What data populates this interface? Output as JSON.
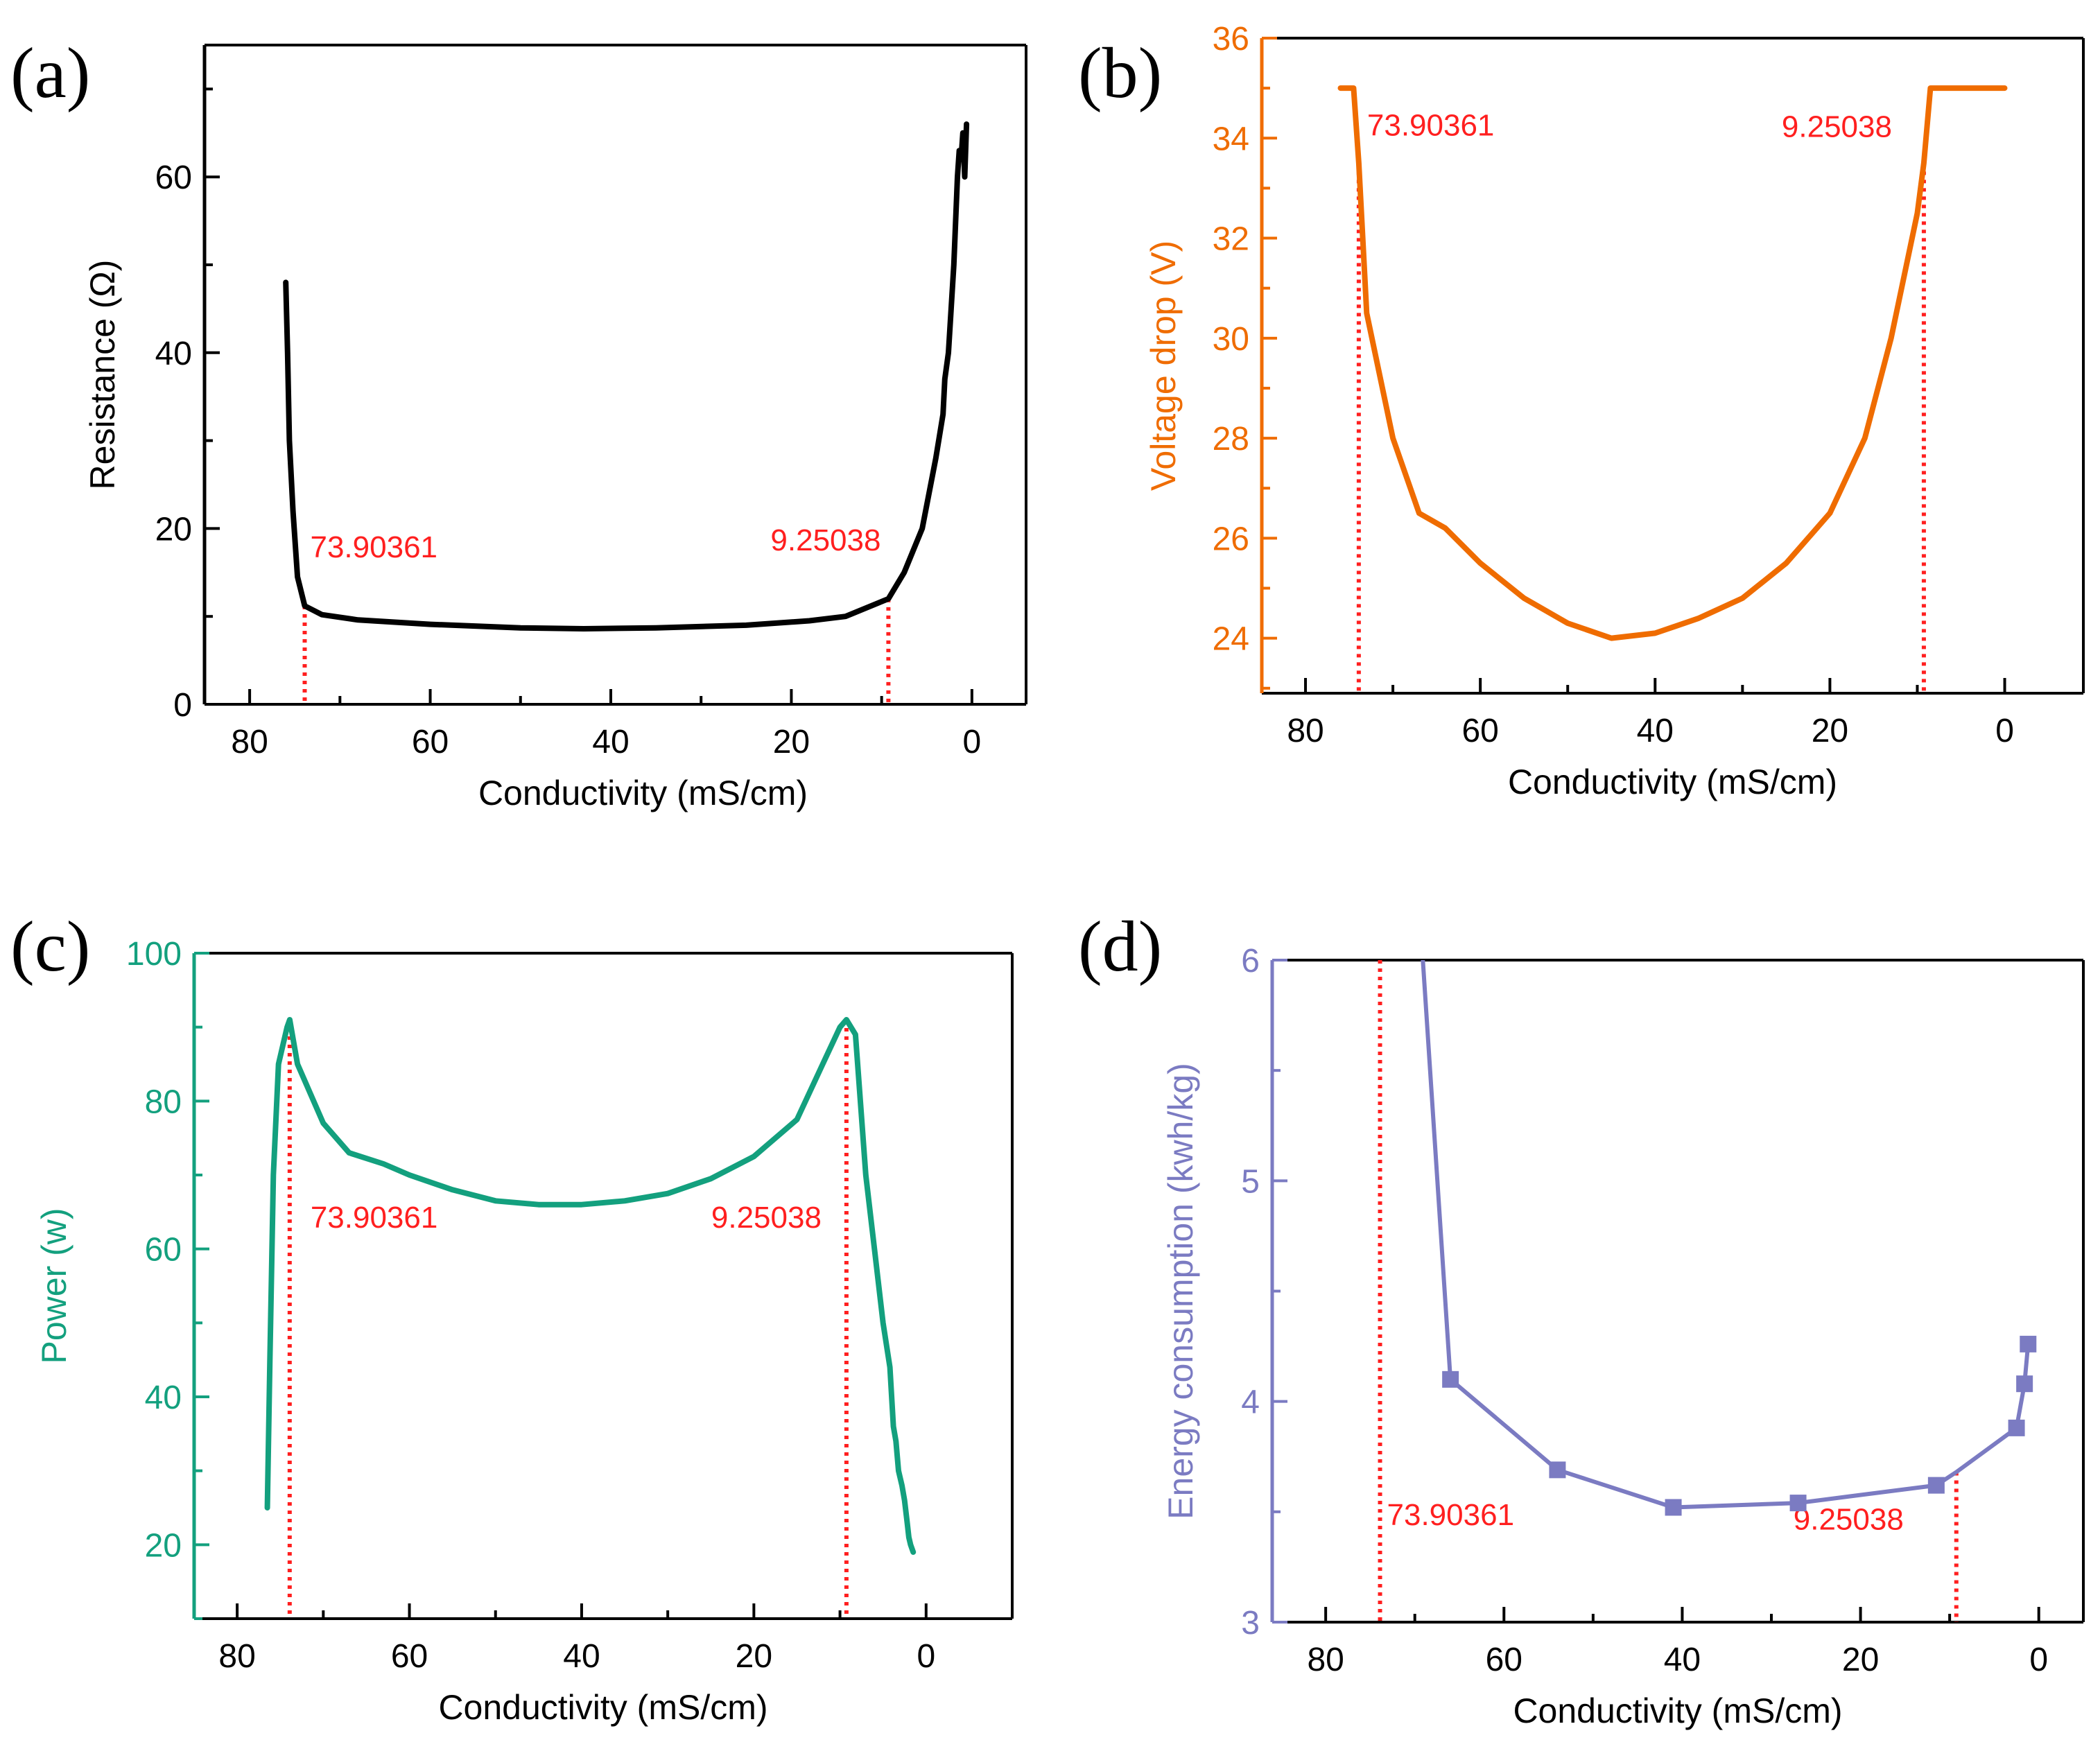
{
  "figure": {
    "panels": [
      "(a)",
      "(b)",
      "(c)",
      "(d)"
    ]
  },
  "chart_data": [
    {
      "id": "a",
      "panel_label": "(a)",
      "type": "line",
      "color": "#000000",
      "title": "",
      "xlabel": "Conductivity (mS/cm)",
      "ylabel": "Resistance (Ω)",
      "xlim": [
        85,
        -6
      ],
      "ylim": [
        0,
        75
      ],
      "xticks": [
        80,
        60,
        40,
        20,
        0
      ],
      "yticks": [
        0,
        20,
        40,
        60
      ],
      "x": [
        76.0,
        75.8,
        75.6,
        75.2,
        74.7,
        73.9,
        72,
        68,
        60,
        50,
        43,
        35,
        25,
        18,
        14,
        9.25,
        7.5,
        5.5,
        4.0,
        3.2,
        3.0,
        2.6,
        2.3,
        2.0,
        1.8,
        1.6,
        1.4,
        1.2,
        1.0,
        0.8,
        0.6
      ],
      "series": [
        {
          "name": "Resistance",
          "values": [
            48,
            40,
            30,
            22,
            14.5,
            11.2,
            10.2,
            9.6,
            9.1,
            8.7,
            8.6,
            8.7,
            9.0,
            9.5,
            10.0,
            12.0,
            15,
            20,
            28,
            33,
            37,
            40,
            45,
            50,
            55,
            60,
            63,
            62,
            65,
            60,
            66
          ]
        }
      ],
      "annotations": [
        {
          "text": "73.90361",
          "x": 73.90361,
          "y_point": 11.2
        },
        {
          "text": "9.25038",
          "x": 9.25038,
          "y_point": 12.0
        }
      ],
      "markers": false
    },
    {
      "id": "b",
      "panel_label": "(b)",
      "type": "line",
      "color": "#ef6c00",
      "title": "",
      "xlabel": "Conductivity (mS/cm)",
      "ylabel": "Voltage drop (V)",
      "xlim": [
        85,
        -9
      ],
      "ylim": [
        22.9,
        36
      ],
      "xticks": [
        80,
        60,
        40,
        20,
        0
      ],
      "yticks": [
        24,
        26,
        28,
        30,
        32,
        34,
        36
      ],
      "x": [
        76,
        74.5,
        73.9,
        73,
        70,
        67,
        64,
        60,
        55,
        50,
        45,
        40,
        35,
        30,
        25,
        20,
        16,
        13,
        10,
        9.25,
        8.5,
        0
      ],
      "series": [
        {
          "name": "Voltage drop",
          "values": [
            35,
            35,
            33.5,
            30.5,
            28,
            26.5,
            26.2,
            25.5,
            24.8,
            24.3,
            24.0,
            24.1,
            24.4,
            24.8,
            25.5,
            26.5,
            28.0,
            30.0,
            32.5,
            33.5,
            35,
            35
          ]
        }
      ],
      "annotations": [
        {
          "text": "73.90361",
          "x": 73.90361,
          "y_point": 33.5
        },
        {
          "text": "9.25038",
          "x": 9.25038,
          "y_point": 33.5
        }
      ],
      "markers": false
    },
    {
      "id": "c",
      "panel_label": "(c)",
      "type": "line",
      "color": "#13a07e",
      "title": "",
      "xlabel": "Conductivity (mS/cm)",
      "ylabel": "Power (w)",
      "xlim": [
        85,
        -10
      ],
      "ylim": [
        10,
        100
      ],
      "xticks": [
        80,
        60,
        40,
        20,
        0
      ],
      "yticks": [
        20,
        40,
        60,
        80,
        100
      ],
      "x": [
        76.5,
        76.2,
        75.8,
        75.2,
        74.2,
        73.9,
        73.0,
        70,
        67,
        63,
        60,
        55,
        50,
        45,
        40,
        35,
        30,
        25,
        20,
        15,
        12,
        10,
        9.25,
        8.2,
        7.0,
        6.0,
        5.0,
        4.2,
        3.8,
        3.5,
        3.2,
        2.8,
        2.5,
        2.2,
        2.0,
        1.8,
        1.5
      ],
      "series": [
        {
          "name": "Power",
          "values": [
            25,
            45,
            70,
            85,
            90,
            91,
            85,
            77,
            73,
            71.5,
            70,
            68,
            66.5,
            66,
            66,
            66.5,
            67.5,
            69.5,
            72.5,
            77.5,
            85,
            90,
            91,
            89,
            70,
            60,
            50,
            44,
            36,
            34,
            30,
            28,
            26,
            23,
            21,
            20,
            19
          ]
        }
      ],
      "annotations": [
        {
          "text": "73.90361",
          "x": 73.90361,
          "y_point": 91
        },
        {
          "text": "9.25038",
          "x": 9.25038,
          "y_point": 91
        }
      ],
      "markers": false
    },
    {
      "id": "d",
      "panel_label": "(d)",
      "type": "line",
      "color": "#7b7bc2",
      "title": "",
      "xlabel": "Conductivity (mS/cm)",
      "ylabel": "Energy consumption (kwh/kg)",
      "xlim": [
        86,
        -5
      ],
      "ylim": [
        3,
        6
      ],
      "xticks": [
        80,
        60,
        40,
        20,
        0
      ],
      "yticks": [
        3,
        4,
        5,
        6
      ],
      "line_x": [
        69.1,
        66.0,
        54.0,
        41.0,
        27.0,
        11.5,
        9.25,
        2.5,
        1.6,
        1.2
      ],
      "line_values": [
        6.0,
        4.1,
        3.69,
        3.52,
        3.54,
        3.62,
        3.68,
        3.88,
        4.08,
        4.26
      ],
      "marker_x": [
        66.0,
        54.0,
        41.0,
        27.0,
        11.5,
        2.5,
        1.6,
        1.2
      ],
      "marker_values": [
        4.1,
        3.69,
        3.52,
        3.54,
        3.62,
        3.88,
        4.08,
        4.26
      ],
      "series": [
        {
          "name": "Energy consumption",
          "values": [
            4.1,
            3.69,
            3.52,
            3.54,
            3.62,
            3.88,
            4.08,
            4.26
          ]
        }
      ],
      "annotations": [
        {
          "text": "73.90361",
          "x": 73.90361,
          "y_point": 6.0
        },
        {
          "text": "9.25038",
          "x": 9.25038,
          "y_point": 3.68
        }
      ],
      "markers": true
    }
  ]
}
